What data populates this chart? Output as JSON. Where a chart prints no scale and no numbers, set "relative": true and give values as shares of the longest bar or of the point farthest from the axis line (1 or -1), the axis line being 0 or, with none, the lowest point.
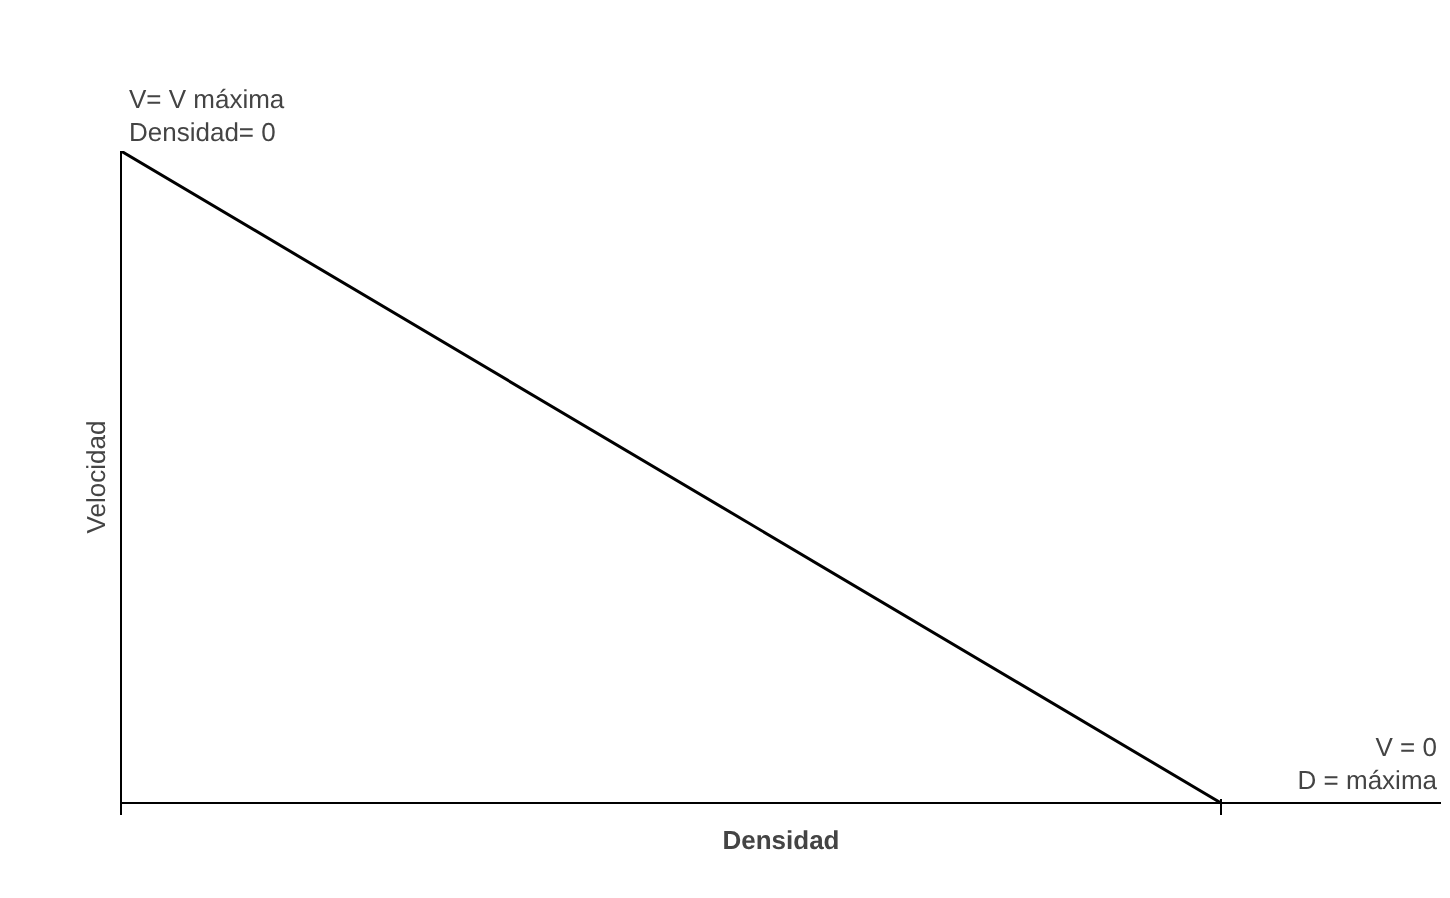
{
  "chart_data": {
    "type": "line",
    "relative": true,
    "categories": [
      null,
      null
    ],
    "series": [
      {
        "color": "#000000",
        "values": [
          1,
          0
        ]
      }
    ],
    "xlabel": "Densidad",
    "ylabel": "Velocidad",
    "annotations": [
      "V= V máxima\nDensidad= 0",
      "V = 0\nD = máxima"
    ],
    "grid": false,
    "marker": "none",
    "line_style": "solid"
  }
}
